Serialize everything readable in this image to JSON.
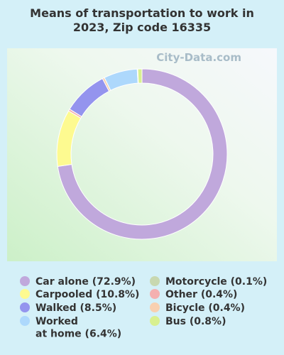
{
  "chart_data": {
    "type": "donut",
    "title": "Means of transportation to work in\n2023, Zip code 16335",
    "watermark": "City-Data.com",
    "categories": [
      "Car alone (72.9%)",
      "Carpooled (10.8%)",
      "Walked (8.5%)",
      "Worked\nat home (6.4%)",
      "Motorcycle (0.1%)",
      "Other (0.4%)",
      "Bicycle (0.4%)",
      "Bus (0.8%)"
    ],
    "values": [
      72.9,
      10.8,
      8.5,
      6.4,
      0.1,
      0.4,
      0.4,
      0.8
    ],
    "colors": [
      "#c0a8dc",
      "#fdfa90",
      "#9494ee",
      "#add8fc",
      "#c8d8b0",
      "#f4b0b0",
      "#f8d0b0",
      "#d8f090"
    ]
  }
}
